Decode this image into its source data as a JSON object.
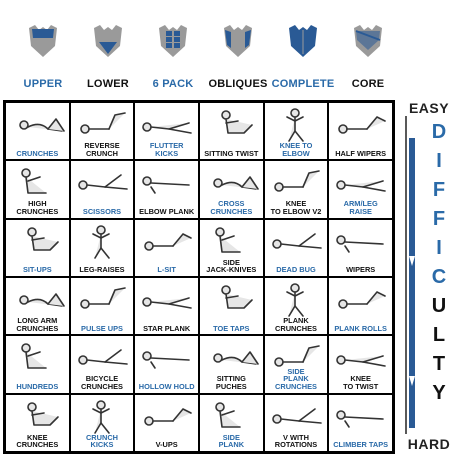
{
  "colors": {
    "blue": "#2a6aa8",
    "black": "#111111",
    "icon_gray": "#9a9a9a",
    "icon_blue": "#2a5a95"
  },
  "legend": [
    {
      "label": "UPPER",
      "color": "#2a6aa8"
    },
    {
      "label": "LOWER",
      "color": "#111111"
    },
    {
      "label": "6 PACK",
      "color": "#2a6aa8"
    },
    {
      "label": "OBLIQUES",
      "color": "#111111"
    },
    {
      "label": "COMPLETE",
      "color": "#2a6aa8"
    },
    {
      "label": "CORE",
      "color": "#111111"
    }
  ],
  "grid": [
    [
      {
        "label": "CRUNCHES",
        "color": "#2a6aa8"
      },
      {
        "label": "REVERSE\nCRUNCH",
        "color": "#111111"
      },
      {
        "label": "FLUTTER KICKS",
        "color": "#2a6aa8"
      },
      {
        "label": "SITTING TWIST",
        "color": "#111111"
      },
      {
        "label": "KNEE TO ELBOW",
        "color": "#2a6aa8"
      },
      {
        "label": "HALF WIPERS",
        "color": "#111111"
      }
    ],
    [
      {
        "label": "HIGH\nCRUNCHES",
        "color": "#111111"
      },
      {
        "label": "SCISSORS",
        "color": "#2a6aa8"
      },
      {
        "label": "ELBOW PLANK",
        "color": "#111111"
      },
      {
        "label": "CROSS\nCRUNCHES",
        "color": "#2a6aa8"
      },
      {
        "label": "KNEE\nTO ELBOW V2",
        "color": "#111111"
      },
      {
        "label": "ARM/LEG RAISE",
        "color": "#2a6aa8"
      }
    ],
    [
      {
        "label": "SIT-UPS",
        "color": "#2a6aa8"
      },
      {
        "label": "LEG-RAISES",
        "color": "#111111"
      },
      {
        "label": "L-SIT",
        "color": "#2a6aa8"
      },
      {
        "label": "SIDE\nJACK-KNIVES",
        "color": "#111111"
      },
      {
        "label": "DEAD BUG",
        "color": "#2a6aa8"
      },
      {
        "label": "WIPERS",
        "color": "#111111"
      }
    ],
    [
      {
        "label": "LONG ARM\nCRUNCHES",
        "color": "#111111"
      },
      {
        "label": "PULSE UPS",
        "color": "#2a6aa8"
      },
      {
        "label": "STAR PLANK",
        "color": "#111111"
      },
      {
        "label": "TOE TAPS",
        "color": "#2a6aa8"
      },
      {
        "label": "PLANK\nCRUNCHES",
        "color": "#111111"
      },
      {
        "label": "PLANK ROLLS",
        "color": "#2a6aa8"
      }
    ],
    [
      {
        "label": "HUNDREDS",
        "color": "#2a6aa8"
      },
      {
        "label": "BICYCLE\nCRUNCHES",
        "color": "#111111"
      },
      {
        "label": "HOLLOW HOLD",
        "color": "#2a6aa8"
      },
      {
        "label": "SITTING\nPUCHES",
        "color": "#111111"
      },
      {
        "label": "SIDE\nPLANK CRUNCHES",
        "color": "#2a6aa8"
      },
      {
        "label": "KNEE\nTO TWIST",
        "color": "#111111"
      }
    ],
    [
      {
        "label": "KNEE\nCRUNCHES",
        "color": "#111111"
      },
      {
        "label": "CRUNCH\nKICKS",
        "color": "#2a6aa8"
      },
      {
        "label": "V-UPS",
        "color": "#111111"
      },
      {
        "label": "SIDE\nPLANK",
        "color": "#2a6aa8"
      },
      {
        "label": "V WITH\nROTATIONS",
        "color": "#111111"
      },
      {
        "label": "CLIMBER TAPS",
        "color": "#2a6aa8"
      }
    ]
  ],
  "side": {
    "top": "EASY",
    "bottom": "HARD",
    "letters": [
      {
        "char": "D",
        "color": "#2a6aa8"
      },
      {
        "char": "I",
        "color": "#2a6aa8"
      },
      {
        "char": "F",
        "color": "#2a6aa8"
      },
      {
        "char": "F",
        "color": "#2a6aa8"
      },
      {
        "char": "I",
        "color": "#2a6aa8"
      },
      {
        "char": "C",
        "color": "#2a6aa8"
      },
      {
        "char": "U",
        "color": "#111111"
      },
      {
        "char": "L",
        "color": "#111111"
      },
      {
        "char": "T",
        "color": "#111111"
      },
      {
        "char": "Y",
        "color": "#111111"
      }
    ]
  }
}
